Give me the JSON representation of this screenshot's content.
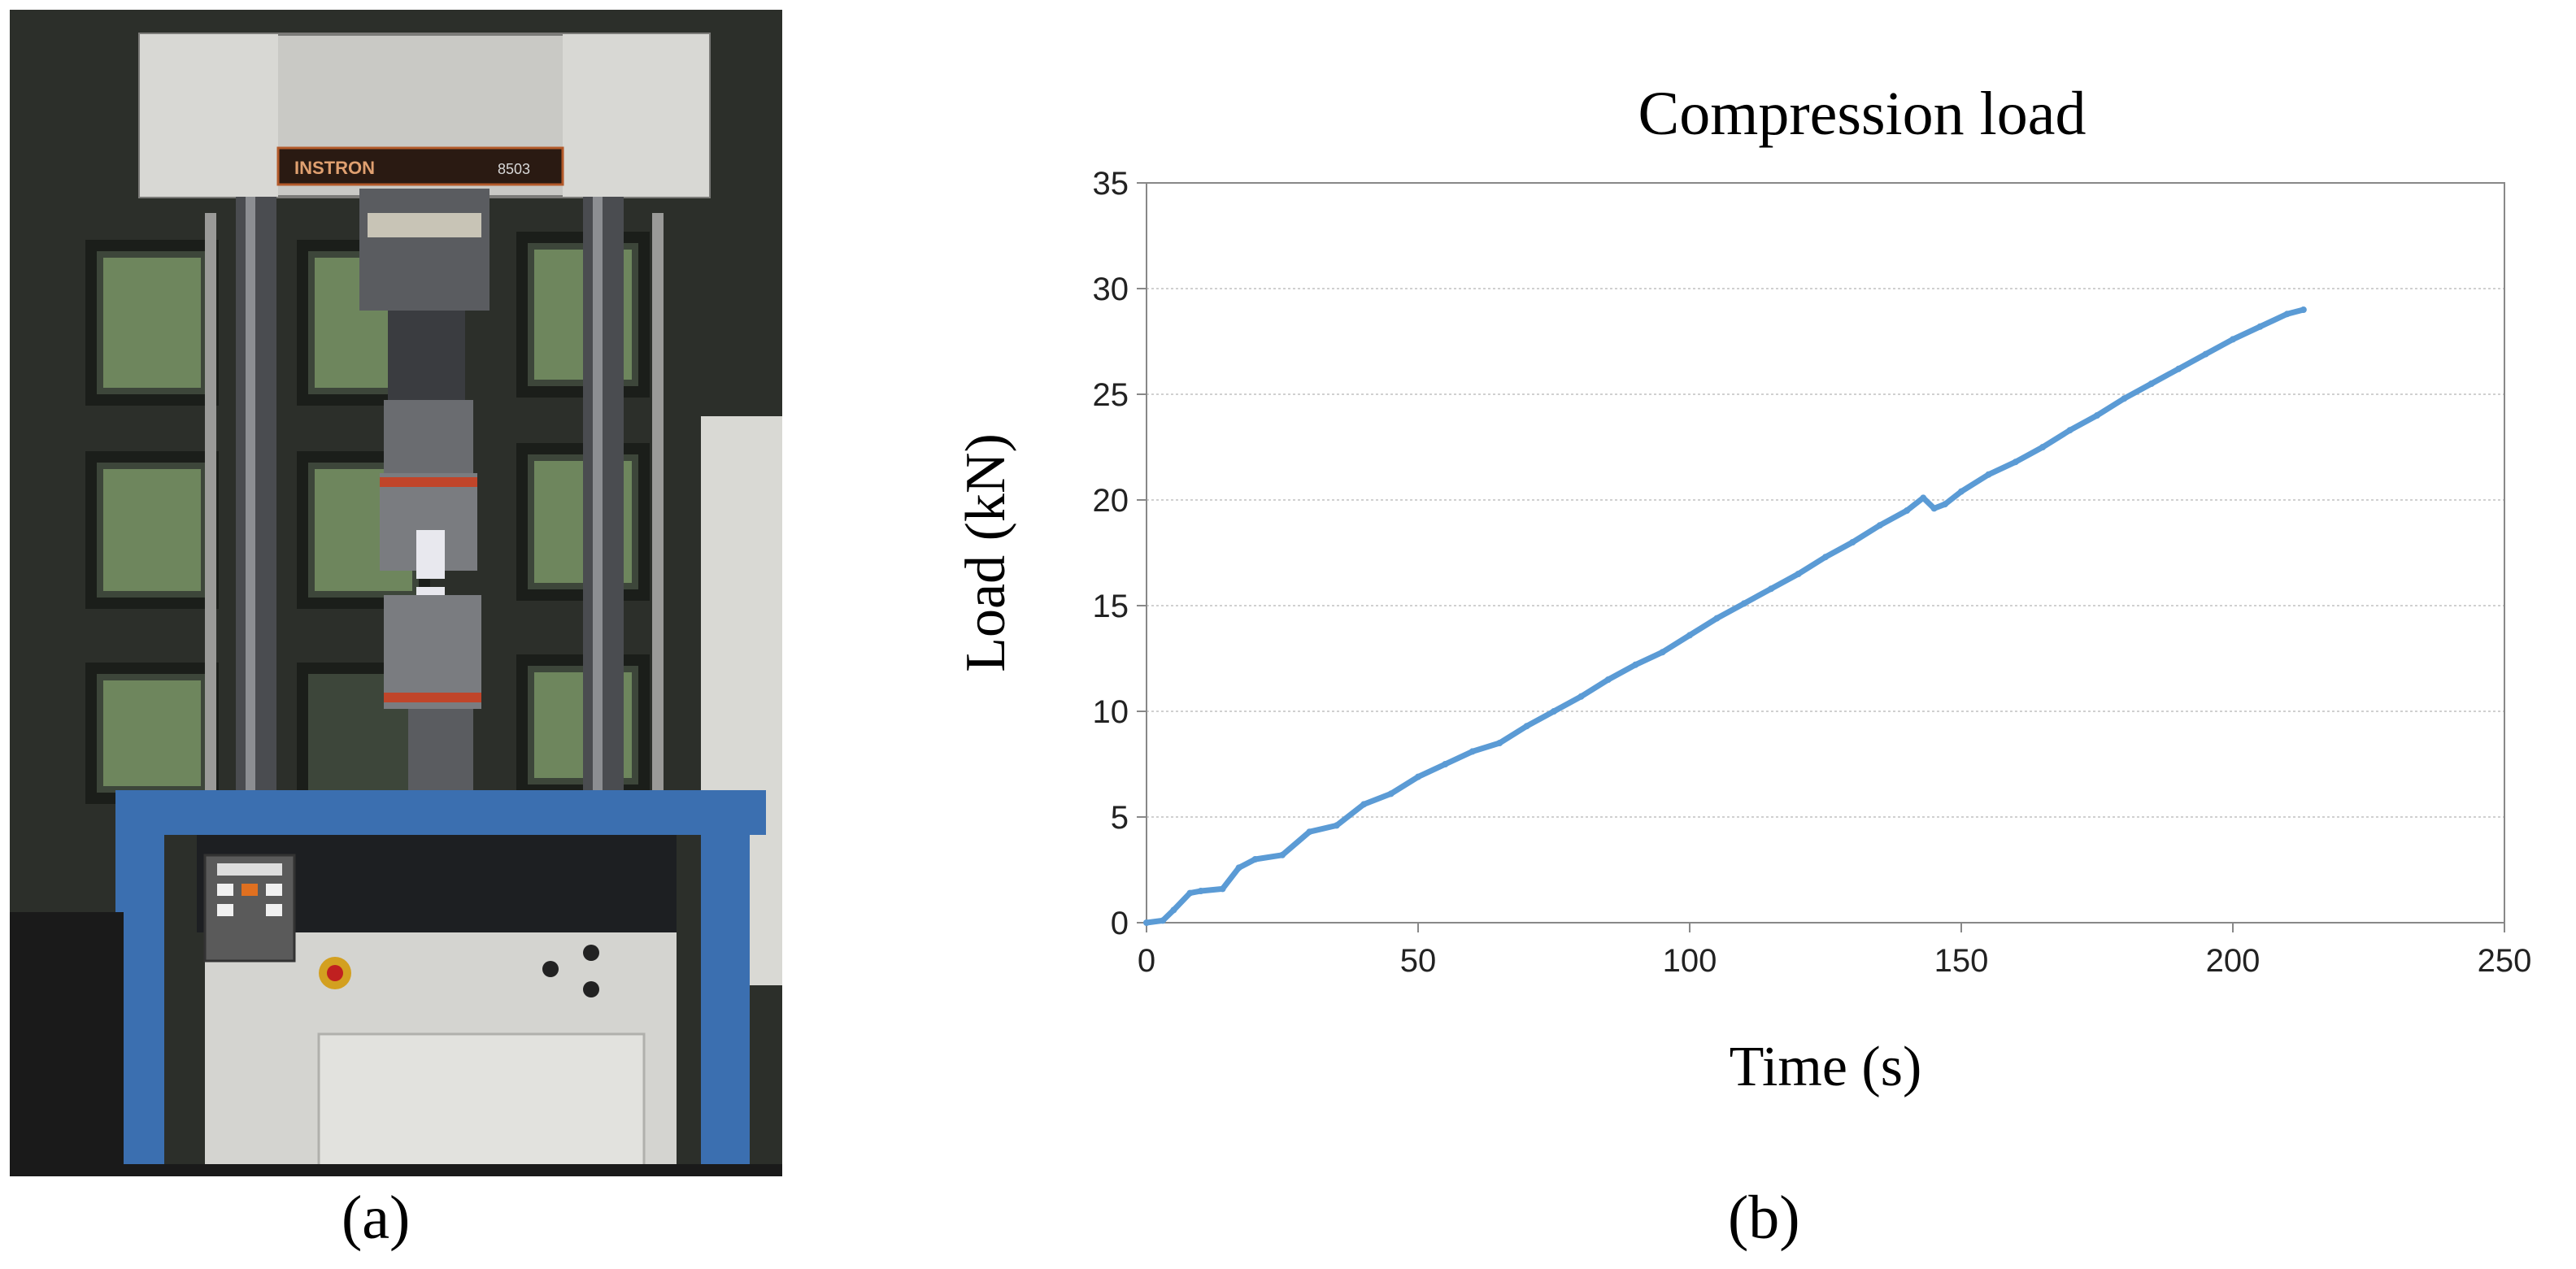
{
  "panels": {
    "a": {
      "label": "(a)",
      "machine_brand": "INSTRON",
      "machine_model": "8503"
    },
    "b": {
      "label": "(b)"
    }
  },
  "colors": {
    "series": "#5b9bd5",
    "grid": "#d0d0d0",
    "axis": "#888888"
  },
  "chart_data": {
    "type": "line",
    "title": "Compression load",
    "xlabel": "Time (s)",
    "ylabel": "Load (kN)",
    "xlim": [
      0,
      250
    ],
    "ylim": [
      0,
      35
    ],
    "x_ticks": [
      0,
      50,
      100,
      150,
      200,
      250
    ],
    "y_ticks": [
      0,
      5,
      10,
      15,
      20,
      25,
      30,
      35
    ],
    "grid": "horizontal",
    "legend": "none",
    "series": [
      {
        "x": [
          0,
          3,
          5,
          8,
          10,
          14,
          17,
          20,
          25,
          30,
          35,
          40,
          45,
          50,
          55,
          60,
          65,
          70,
          75,
          80,
          85,
          90,
          95,
          100,
          105,
          110,
          115,
          120,
          125,
          130,
          135,
          140,
          143,
          145,
          147,
          150,
          155,
          160,
          165,
          170,
          175,
          180,
          185,
          190,
          195,
          200,
          205,
          210,
          213
        ],
        "y": [
          0,
          0.1,
          0.6,
          1.4,
          1.5,
          1.6,
          2.6,
          3.0,
          3.2,
          4.3,
          4.6,
          5.6,
          6.1,
          6.9,
          7.5,
          8.1,
          8.5,
          9.3,
          10.0,
          10.7,
          11.5,
          12.2,
          12.8,
          13.6,
          14.4,
          15.1,
          15.8,
          16.5,
          17.3,
          18.0,
          18.8,
          19.5,
          20.1,
          19.6,
          19.8,
          20.4,
          21.2,
          21.8,
          22.5,
          23.3,
          24.0,
          24.8,
          25.5,
          26.2,
          26.9,
          27.6,
          28.2,
          28.8,
          29.0
        ]
      }
    ]
  }
}
